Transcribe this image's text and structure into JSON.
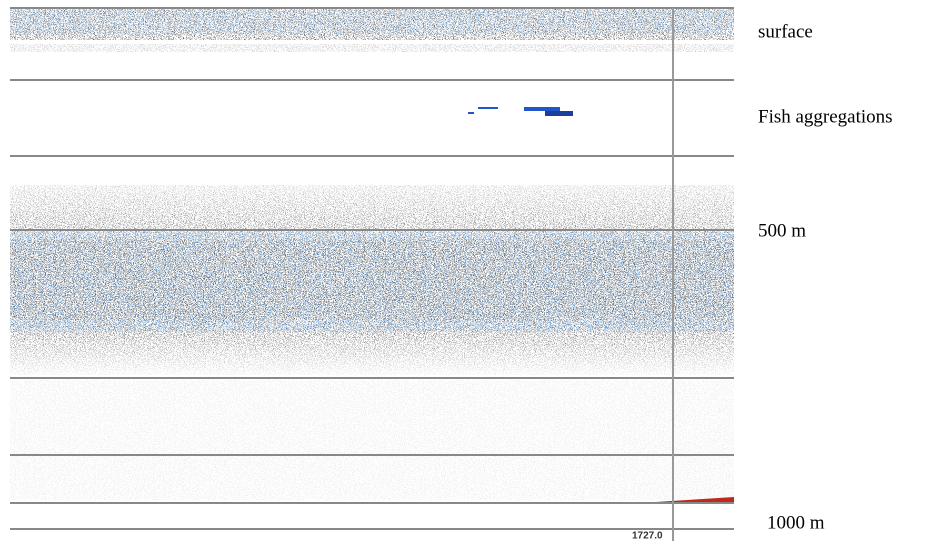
{
  "annotations": [
    "surface",
    "Fish aggregations",
    "500 m",
    "1000 m"
  ],
  "marker": {
    "label": "1727.0"
  }
}
